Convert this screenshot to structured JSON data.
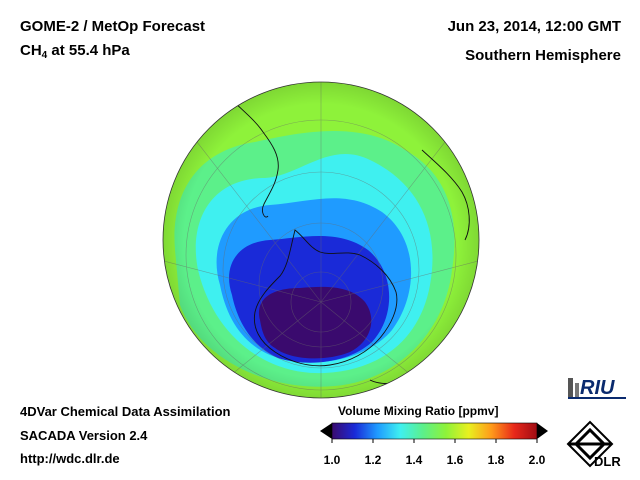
{
  "header": {
    "title_line1": "GOME-2 / MetOp Forecast",
    "species": "CH",
    "species_sub": "4",
    "level": " at 55.4 hPa",
    "datetime": "Jun 23, 2014, 12:00 GMT",
    "hemisphere": "Southern Hemisphere"
  },
  "footer": {
    "line1": "4DVar Chemical Data Assimilation",
    "line2": "SACADA Version 2.4",
    "url": "http://wdc.dlr.de"
  },
  "colorbar": {
    "title": "Volume Mixing Ratio [ppmv]",
    "ticks": [
      "1.0",
      "1.2",
      "1.4",
      "1.6",
      "1.8",
      "2.0"
    ],
    "colors": [
      "#3a0a6e",
      "#1a2ad8",
      "#1f9bff",
      "#3ff0f0",
      "#5cf08a",
      "#8ef23a",
      "#e8f020",
      "#ff9a1a",
      "#e8281a",
      "#a00c14"
    ]
  },
  "map_data": {
    "center": "South Pole",
    "field_colors": {
      "background": "#8ef23a",
      "band": "#5cf08a",
      "mid": "#3ff0f0",
      "outer_low": "#1f9bff",
      "low": "#1a2ad8",
      "core": "#3a0a6e"
    }
  },
  "logos": {
    "riu": "RIU",
    "dlr": "DLR"
  }
}
